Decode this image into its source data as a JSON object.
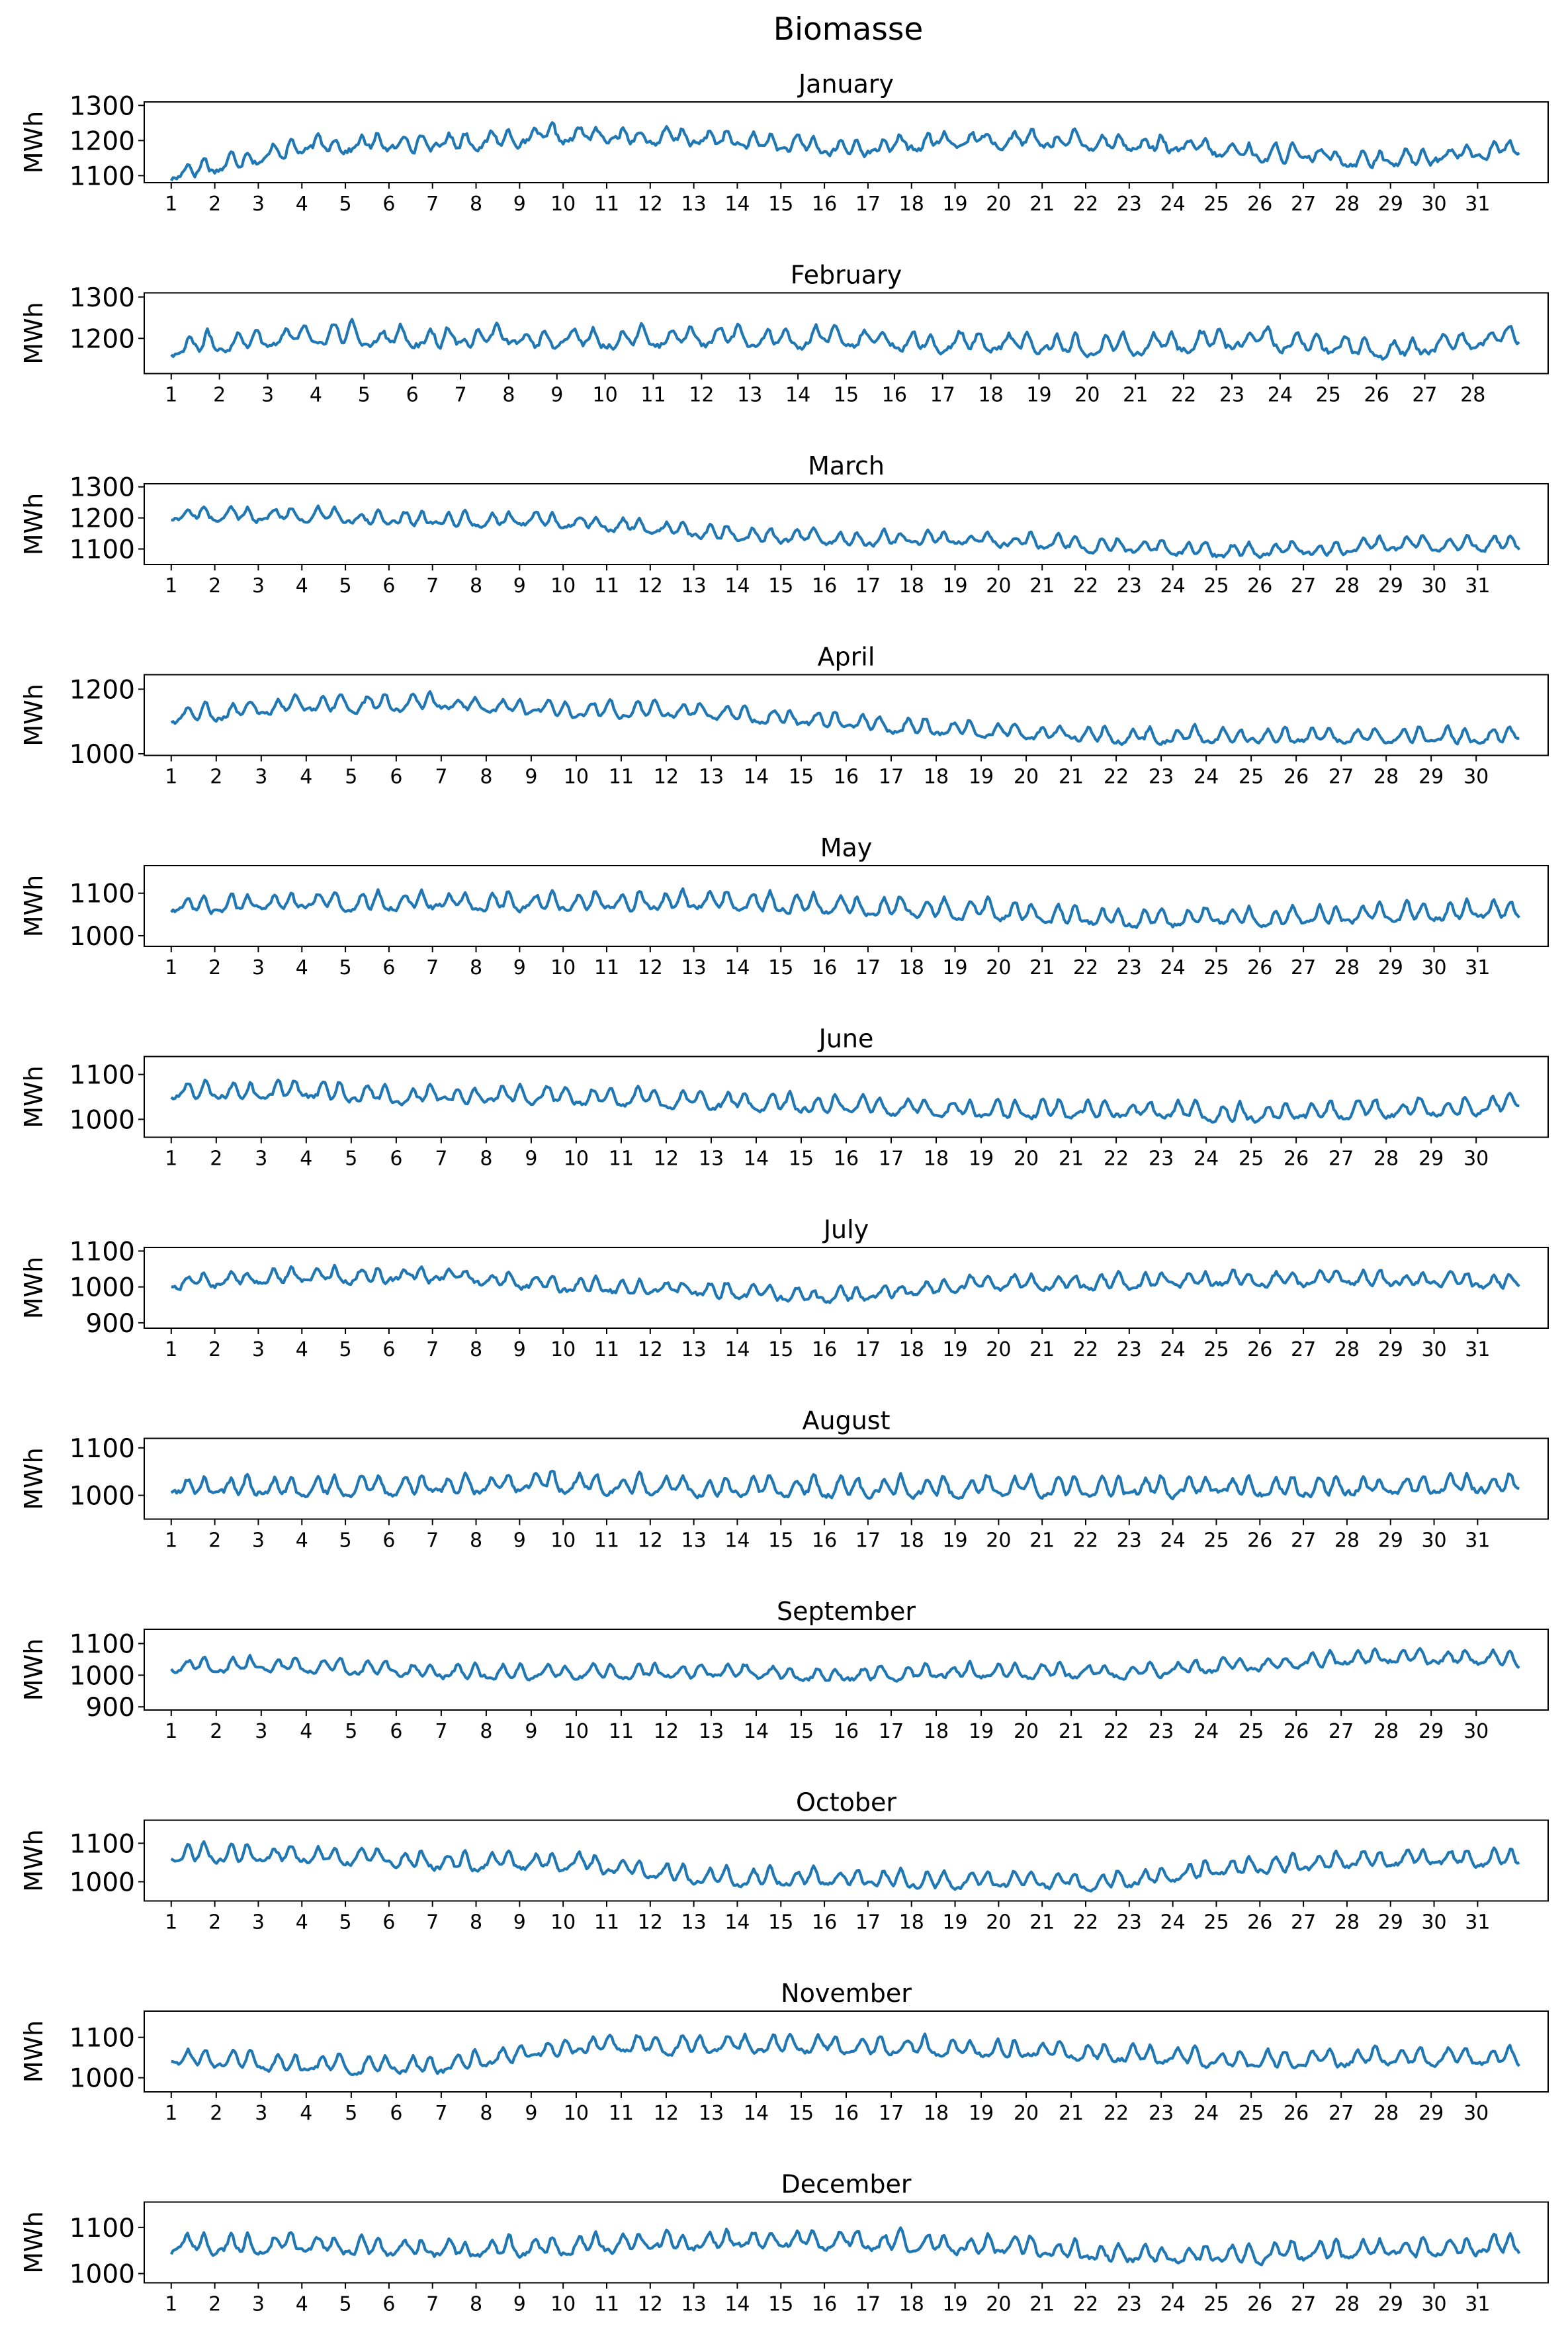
{
  "title": "Biomasse",
  "ylabel": "MWh",
  "line_color": "#1f77b4",
  "chart_data": [
    {
      "type": "line",
      "title": "January",
      "days": 31,
      "ylim": [
        1080,
        1310
      ],
      "yticks": [
        1100,
        1200,
        1300
      ],
      "mean": 1195,
      "amp": 45,
      "noise": 18,
      "trend": [
        -80,
        0,
        10,
        30,
        20,
        -10,
        20,
        10,
        -20,
        -40,
        -10
      ]
    },
    {
      "type": "line",
      "title": "February",
      "days": 28,
      "ylim": [
        1115,
        1310
      ],
      "yticks": [
        1200,
        1300
      ],
      "mean": 1210,
      "amp": 48,
      "noise": 16,
      "trend": [
        -20,
        10,
        0,
        0,
        0,
        0,
        -10,
        -20,
        0,
        -30,
        10
      ]
    },
    {
      "type": "line",
      "title": "March",
      "days": 31,
      "ylim": [
        1050,
        1310
      ],
      "yticks": [
        1100,
        1200,
        1300
      ],
      "mean": 1160,
      "amp": 45,
      "noise": 14,
      "trend": [
        60,
        60,
        40,
        40,
        0,
        -20,
        -20,
        -40,
        -60,
        -40,
        -30
      ]
    },
    {
      "type": "line",
      "title": "April",
      "days": 30,
      "ylim": [
        995,
        1245
      ],
      "yticks": [
        1000,
        1200
      ],
      "mean": 1105,
      "amp": 50,
      "noise": 14,
      "trend": [
        20,
        60,
        60,
        40,
        40,
        0,
        -20,
        -40,
        -40,
        -40,
        -40
      ]
    },
    {
      "type": "line",
      "title": "May",
      "days": 31,
      "ylim": [
        975,
        1165
      ],
      "yticks": [
        1000,
        1100
      ],
      "mean": 1070,
      "amp": 45,
      "noise": 12,
      "trend": [
        10,
        20,
        20,
        20,
        20,
        10,
        0,
        -20,
        -20,
        -10,
        0
      ]
    },
    {
      "type": "line",
      "title": "June",
      "days": 30,
      "ylim": [
        960,
        1140
      ],
      "yticks": [
        1000,
        1100
      ],
      "mean": 1040,
      "amp": 40,
      "noise": 12,
      "trend": [
        30,
        30,
        20,
        20,
        10,
        0,
        -10,
        -10,
        -20,
        -10,
        0
      ]
    },
    {
      "type": "line",
      "title": "July",
      "days": 31,
      "ylim": [
        885,
        1110
      ],
      "yticks": [
        900,
        1000,
        1100
      ],
      "mean": 1010,
      "amp": 40,
      "noise": 14,
      "trend": [
        10,
        30,
        30,
        0,
        -10,
        -30,
        10,
        10,
        20,
        20,
        10
      ]
    },
    {
      "type": "line",
      "title": "August",
      "days": 31,
      "ylim": [
        950,
        1120
      ],
      "yticks": [
        1000,
        1100
      ],
      "mean": 1025,
      "amp": 40,
      "noise": 12,
      "trend": [
        0,
        0,
        0,
        10,
        0,
        0,
        0,
        0,
        0,
        0,
        10
      ]
    },
    {
      "type": "line",
      "title": "September",
      "days": 30,
      "ylim": [
        890,
        1145
      ],
      "yticks": [
        900,
        1000,
        1100
      ],
      "mean": 1020,
      "amp": 45,
      "noise": 14,
      "trend": [
        20,
        20,
        0,
        0,
        0,
        -10,
        0,
        0,
        20,
        50,
        40
      ]
    },
    {
      "type": "line",
      "title": "October",
      "days": 31,
      "ylim": [
        950,
        1160
      ],
      "yticks": [
        1000,
        1100
      ],
      "mean": 1040,
      "amp": 45,
      "noise": 12,
      "trend": [
        40,
        40,
        20,
        20,
        -20,
        -20,
        -30,
        -30,
        10,
        30,
        30
      ]
    },
    {
      "type": "line",
      "title": "November",
      "days": 30,
      "ylim": [
        965,
        1165
      ],
      "yticks": [
        1000,
        1100
      ],
      "mean": 1060,
      "amp": 45,
      "noise": 12,
      "trend": [
        0,
        -20,
        -20,
        30,
        30,
        30,
        20,
        10,
        -10,
        0,
        0
      ]
    },
    {
      "type": "line",
      "title": "December",
      "days": 31,
      "ylim": [
        980,
        1155
      ],
      "yticks": [
        1000,
        1100
      ],
      "mean": 1060,
      "amp": 40,
      "noise": 12,
      "trend": [
        10,
        10,
        0,
        10,
        20,
        20,
        10,
        -10,
        -10,
        0,
        10
      ]
    }
  ]
}
